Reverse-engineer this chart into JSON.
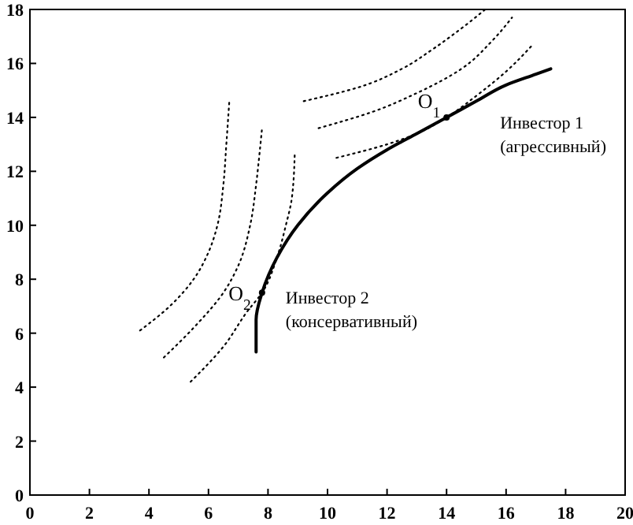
{
  "chart_data": {
    "type": "line",
    "line_style": "solid",
    "marker": "none",
    "grid": false,
    "xlim": [
      0,
      20
    ],
    "ylim": [
      0,
      18
    ],
    "xticks": [
      0,
      2,
      4,
      6,
      8,
      10,
      12,
      14,
      16,
      18,
      20
    ],
    "yticks": [
      0,
      2,
      4,
      6,
      8,
      10,
      12,
      14,
      16,
      18
    ],
    "series": [
      {
        "color": "#000000",
        "x": [
          7.6,
          7.6,
          7.8,
          8.3,
          9,
          10,
          11,
          12,
          13,
          14,
          15,
          16,
          17,
          17.5
        ],
        "values": [
          5.3,
          6.5,
          7.5,
          8.8,
          10,
          11.2,
          12.1,
          12.8,
          13.4,
          14,
          14.6,
          15.2,
          15.6,
          15.8
        ]
      },
      {
        "color": "#000000",
        "line_style": "dotted",
        "x": [
          3.7,
          4.7,
          5.5,
          6,
          6.3,
          6.5,
          6.6,
          6.7
        ],
        "values": [
          6.1,
          7,
          8,
          9,
          10,
          11.5,
          13,
          14.6
        ]
      },
      {
        "color": "#000000",
        "line_style": "dotted",
        "x": [
          4.5,
          5.5,
          6.5,
          7,
          7.4,
          7.6,
          7.7,
          7.8
        ],
        "values": [
          5.1,
          6.2,
          7.5,
          8.5,
          10,
          11.5,
          12.5,
          13.6
        ]
      },
      {
        "color": "#000000",
        "line_style": "dotted",
        "x": [
          5.4,
          6.5,
          7.3,
          7.8,
          8.3,
          8.6,
          8.8,
          8.9
        ],
        "values": [
          4.2,
          5.5,
          6.8,
          7.5,
          8.8,
          10,
          11,
          12.7
        ]
      },
      {
        "color": "#000000",
        "line_style": "dotted",
        "x": [
          9.2,
          11,
          12.5,
          13.5,
          14.5,
          15.3
        ],
        "values": [
          14.6,
          15.1,
          15.8,
          16.5,
          17.3,
          18
        ]
      },
      {
        "color": "#000000",
        "line_style": "dotted",
        "x": [
          9.7,
          11.5,
          13,
          14.5,
          15.5,
          16.2
        ],
        "values": [
          13.6,
          14.2,
          14.9,
          15.8,
          16.8,
          17.7
        ]
      },
      {
        "color": "#000000",
        "line_style": "dotted",
        "x": [
          10.3,
          12,
          13,
          14,
          15,
          16,
          16.9
        ],
        "values": [
          12.5,
          13,
          13.4,
          14,
          14.8,
          15.7,
          16.7
        ]
      },
      {
        "type": "scatter",
        "marker": "circle",
        "color": "#000000",
        "x": [
          14,
          7.8
        ],
        "values": [
          14,
          7.5
        ]
      }
    ],
    "annotations": [
      "O$_{1}$",
      "Инвестор 1\n(агрессивный)",
      "O$_{2}$",
      "Инвестор 2\n(консервативный)"
    ]
  }
}
